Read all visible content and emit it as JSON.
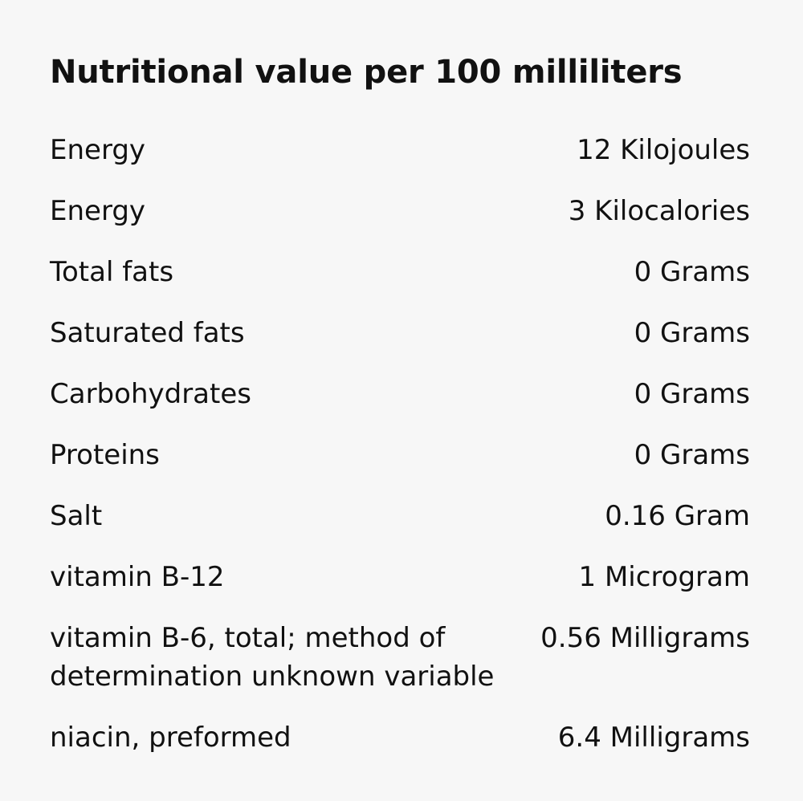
{
  "title": "Nutritional value per 100 milliliters",
  "rows": [
    {
      "label": "Energy",
      "value": "12 Kilojoules"
    },
    {
      "label": "Energy",
      "value": "3 Kilocalories"
    },
    {
      "label": "Total fats",
      "value": "0 Grams"
    },
    {
      "label": "Saturated fats",
      "value": "0 Grams"
    },
    {
      "label": "Carbohydrates",
      "value": "0 Grams"
    },
    {
      "label": "Proteins",
      "value": "0 Grams"
    },
    {
      "label": "Salt",
      "value": "0.16 Gram"
    },
    {
      "label": "vitamin B-12",
      "value": "1 Microgram"
    },
    {
      "label": "vitamin B-6, total; method of determination unknown variable",
      "value": "0.56 Milligrams"
    },
    {
      "label": "niacin, preformed",
      "value": "6.4 Milligrams"
    }
  ]
}
